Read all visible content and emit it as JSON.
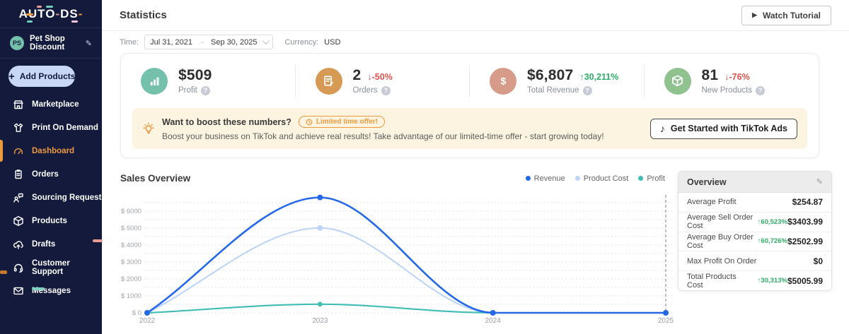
{
  "logo": {
    "p1": "AU",
    "p2": "TO",
    "h1": "-",
    "p3": "DS",
    "h2": "-"
  },
  "sidebar": {
    "store": {
      "initials": "PS",
      "name": "Pet Shop Discount"
    },
    "add_products_label": "Add Products",
    "items": [
      {
        "label": "Marketplace",
        "icon": "storefront-icon"
      },
      {
        "label": "Print On Demand",
        "icon": "tshirt-icon"
      },
      {
        "label": "Dashboard",
        "icon": "gauge-icon",
        "active": true
      },
      {
        "label": "Orders",
        "icon": "clipboard-icon"
      },
      {
        "label": "Sourcing Request",
        "icon": "person-chat-icon"
      },
      {
        "label": "Products",
        "icon": "box-icon"
      },
      {
        "label": "Drafts",
        "icon": "cloud-upload-icon"
      },
      {
        "label": "Customer Support",
        "icon": "headset-icon"
      },
      {
        "label": "Messages",
        "icon": "envelope-icon"
      }
    ]
  },
  "header": {
    "title": "Statistics",
    "watch_tutorial_label": "Watch Tutorial"
  },
  "filters": {
    "time_label": "Time:",
    "date_from": "Jul 31, 2021",
    "date_to": "Sep 30, 2025",
    "currency_label": "Currency:",
    "currency_value": "USD"
  },
  "stats": [
    {
      "value": "$509",
      "change": "",
      "label": "Profit",
      "icon": "bar-chart-icon",
      "icon_color": "#74c0ab"
    },
    {
      "value": "2",
      "change": "↓-50%",
      "direction": "down",
      "label": "Orders",
      "icon": "order-note-icon",
      "icon_color": "#d69a55"
    },
    {
      "value": "$6,807",
      "change": "↑30,211%",
      "direction": "up",
      "label": "Total Revenue",
      "icon": "dollar-icon",
      "icon_color": "#d69c89"
    },
    {
      "value": "81",
      "change": "↓-76%",
      "direction": "down",
      "label": "New Products",
      "icon": "package-icon",
      "icon_color": "#8fc28f"
    }
  ],
  "banner": {
    "title": "Want to boost these numbers?",
    "badge": "Limited time offer!",
    "text": "Boost your business on TikTok and achieve real results! Take advantage of our limited-time offer - start growing today!",
    "cta": "Get Started with TikTok Ads"
  },
  "sales": {
    "title": "Sales Overview",
    "legend": [
      "Revenue",
      "Product Cost",
      "Profit"
    ]
  },
  "overview": {
    "title": "Overview",
    "rows": [
      {
        "label": "Average Profit",
        "pct": "",
        "value": "$254.87"
      },
      {
        "label": "Average Sell Order Cost",
        "pct": "↑60,523%",
        "value": "$3403.99"
      },
      {
        "label": "Average Buy Order Cost",
        "pct": "↑60,726%",
        "value": "$2502.99"
      },
      {
        "label": "Max Profit On Order",
        "pct": "",
        "value": "$0"
      },
      {
        "label": "Total Products Cost",
        "pct": "↑30,313%",
        "value": "$5005.99"
      }
    ]
  },
  "chart_data": {
    "type": "line",
    "x": [
      "2022",
      "2023",
      "2024",
      "2025"
    ],
    "series": [
      {
        "name": "Product Cost",
        "color": "#bfd5f8",
        "values": [
          0,
          5005.99,
          0,
          0
        ]
      },
      {
        "name": "Profit",
        "color": "#42bdb4",
        "values": [
          0,
          509,
          0,
          0
        ]
      },
      {
        "name": "Revenue",
        "color": "#2569e8",
        "values": [
          0,
          6807,
          0,
          0
        ]
      }
    ],
    "title": "Sales Overview",
    "xlabel": "",
    "ylabel": "",
    "ylim": [
      0,
      6807
    ],
    "ytick_step": 1000,
    "grid_step": 500,
    "ytick_prefix": "$ ",
    "grid": true,
    "smooth": true,
    "legend_position": "top-right",
    "dashed_vline_x": "2025"
  },
  "colors": {
    "sidebar_navy": "#141a3c",
    "accent_orange": "#ec9a3d",
    "negative_red": "#e0514c",
    "positive_green": "#2fae68",
    "revenue_blue": "#2569e8",
    "product_cost_blue": "#bfd5f8",
    "profit_teal": "#42bdb4",
    "banner_cream": "#fcf4e0"
  }
}
